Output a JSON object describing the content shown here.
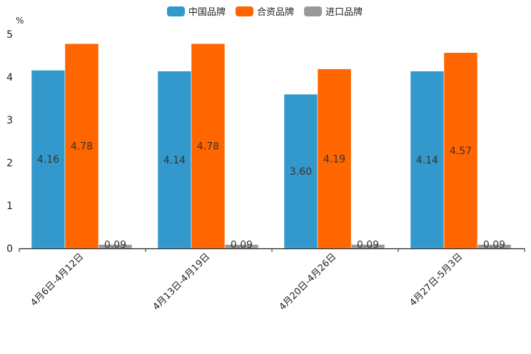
{
  "chart_data": {
    "type": "bar",
    "title": "",
    "xlabel": "",
    "ylabel": "%",
    "ylim": [
      0,
      5
    ],
    "yticks": [
      0,
      1,
      2,
      3,
      4,
      5
    ],
    "categories": [
      "4月6日-4月12日",
      "4月13日-4月19日",
      "4月20日-4月26日",
      "4月27日-5月3日"
    ],
    "series": [
      {
        "name": "中国品牌",
        "color": "#3399cc",
        "values": [
          4.16,
          4.14,
          3.6,
          4.14
        ],
        "labels": [
          "4.16",
          "4.14",
          "3.60",
          "4.14"
        ]
      },
      {
        "name": "合资品牌",
        "color": "#ff6600",
        "values": [
          4.78,
          4.78,
          4.19,
          4.57
        ],
        "labels": [
          "4.78",
          "4.78",
          "4.19",
          "4.57"
        ]
      },
      {
        "name": "进口品牌",
        "color": "#999999",
        "values": [
          0.09,
          0.09,
          0.09,
          0.09
        ],
        "labels": [
          "0.09",
          "0.09",
          "0.09",
          "0.09"
        ]
      }
    ],
    "legend_position": "top-center",
    "grid": false
  }
}
